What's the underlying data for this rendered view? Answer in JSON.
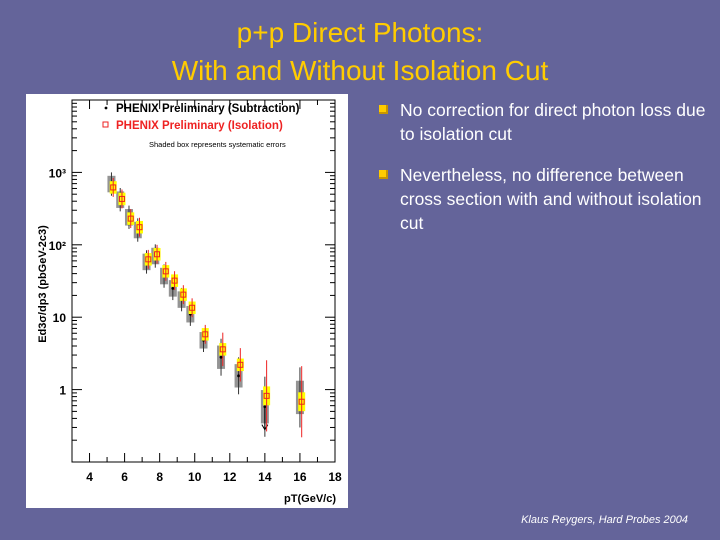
{
  "slide": {
    "title_line1": "p+p Direct Photons:",
    "title_line2": "With and Without Isolation Cut",
    "bullets": [
      "No correction for direct photon loss due to isolation cut",
      "Nevertheless, no difference between cross section with and without isolation cut"
    ],
    "credit": "Klaus Reygers, Hard Probes 2004",
    "colors": {
      "background": "#64649a",
      "title": "#ffcc00",
      "bullet_text": "#ffffff",
      "bullet_marker": "#ffcc00"
    }
  },
  "chart_data": {
    "type": "scatter",
    "title": "",
    "xlabel": "pT(GeV/c)",
    "ylabel": "Ed3σ/dp3 (pbGeV-2c3)",
    "xlim": [
      3,
      18
    ],
    "ylim": [
      0.1,
      10000
    ],
    "yscale": "log",
    "x_ticks": [
      "4",
      "6",
      "8",
      "10",
      "12",
      "14",
      "16",
      "18"
    ],
    "y_ticks": [
      "1",
      "10",
      "10²",
      "10³"
    ],
    "annotation": "Shaded box represents systematic errors",
    "series": [
      {
        "name": "PHENIX Preliminary (Subtraction)",
        "marker": "dot",
        "color": "#000000",
        "box_color": "#888888",
        "x": [
          5.25,
          5.75,
          6.25,
          6.75,
          7.25,
          7.75,
          8.25,
          8.75,
          9.25,
          9.75,
          10.5,
          11.5,
          12.5,
          14.0,
          16.0
        ],
        "y": [
          690,
          420,
          240,
          160,
          58,
          70,
          37,
          25,
          17.5,
          11,
          4.8,
          2.8,
          1.55,
          0.58,
          0.78
        ]
      },
      {
        "name": "PHENIX Preliminary (Isolation)",
        "marker": "open-square",
        "color": "#ee2222",
        "box_color": "#ffff00",
        "x": [
          5.35,
          5.85,
          6.35,
          6.85,
          7.35,
          7.85,
          8.35,
          8.85,
          9.35,
          9.85,
          10.6,
          11.6,
          12.6,
          14.1,
          16.1
        ],
        "y": [
          620,
          430,
          230,
          175,
          63,
          74,
          43,
          32,
          20.5,
          13.5,
          5.8,
          3.6,
          2.2,
          0.82,
          0.68
        ]
      }
    ],
    "legend": {
      "entries": [
        "PHENIX Preliminary (Subtraction)",
        "PHENIX Preliminary (Isolation)"
      ],
      "note": "Shaded box represents systematic errors",
      "position": "top-right"
    }
  }
}
